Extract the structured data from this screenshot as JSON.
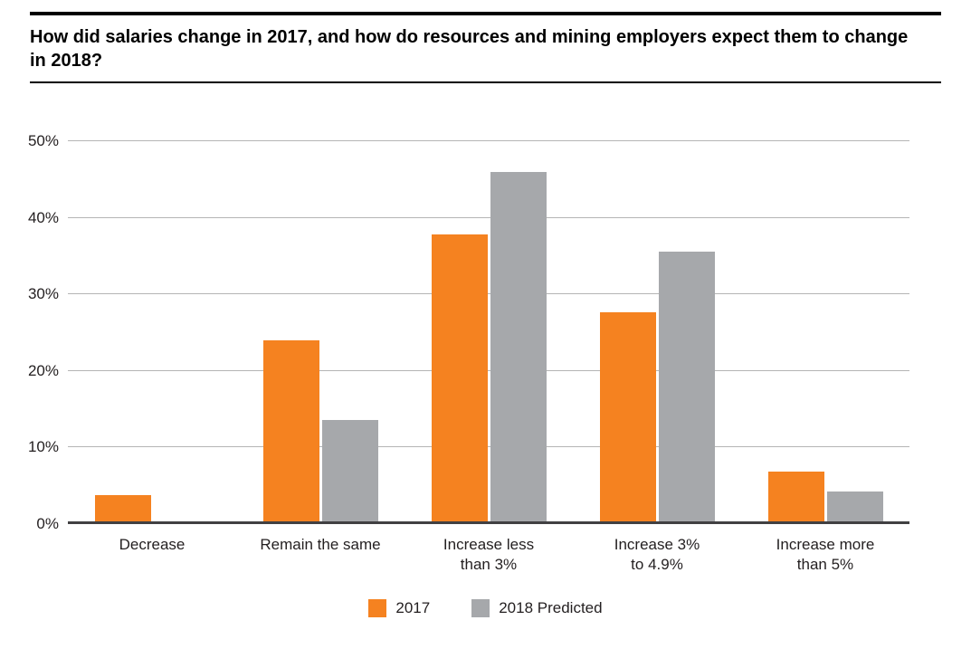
{
  "chart_data": {
    "type": "bar",
    "title": "How did salaries change in 2017, and how do resources and mining employers expect them to change in 2018?",
    "categories": [
      "Decrease",
      "Remain the same",
      "Increase less\nthan 3%",
      "Increase 3%\nto 4.9%",
      "Increase more\nthan 5%"
    ],
    "series": [
      {
        "name": "2017",
        "color": "#F58220",
        "values": [
          3.8,
          24,
          37.8,
          27.7,
          6.8
        ]
      },
      {
        "name": "2018 Predicted",
        "color": "#A6A8AB",
        "values": [
          0,
          13.6,
          46,
          35.6,
          4.2
        ]
      }
    ],
    "xlabel": "",
    "ylabel": "",
    "ylim": [
      0,
      50
    ],
    "yticks": [
      0,
      10,
      20,
      30,
      40,
      50
    ],
    "ytick_labels": [
      "0%",
      "10%",
      "20%",
      "30%",
      "40%",
      "50%"
    ],
    "grid": true,
    "legend_position": "bottom",
    "colors": {
      "axis_line": "#414042",
      "gridline": "#b5b5b5",
      "rule": "#000000"
    }
  }
}
